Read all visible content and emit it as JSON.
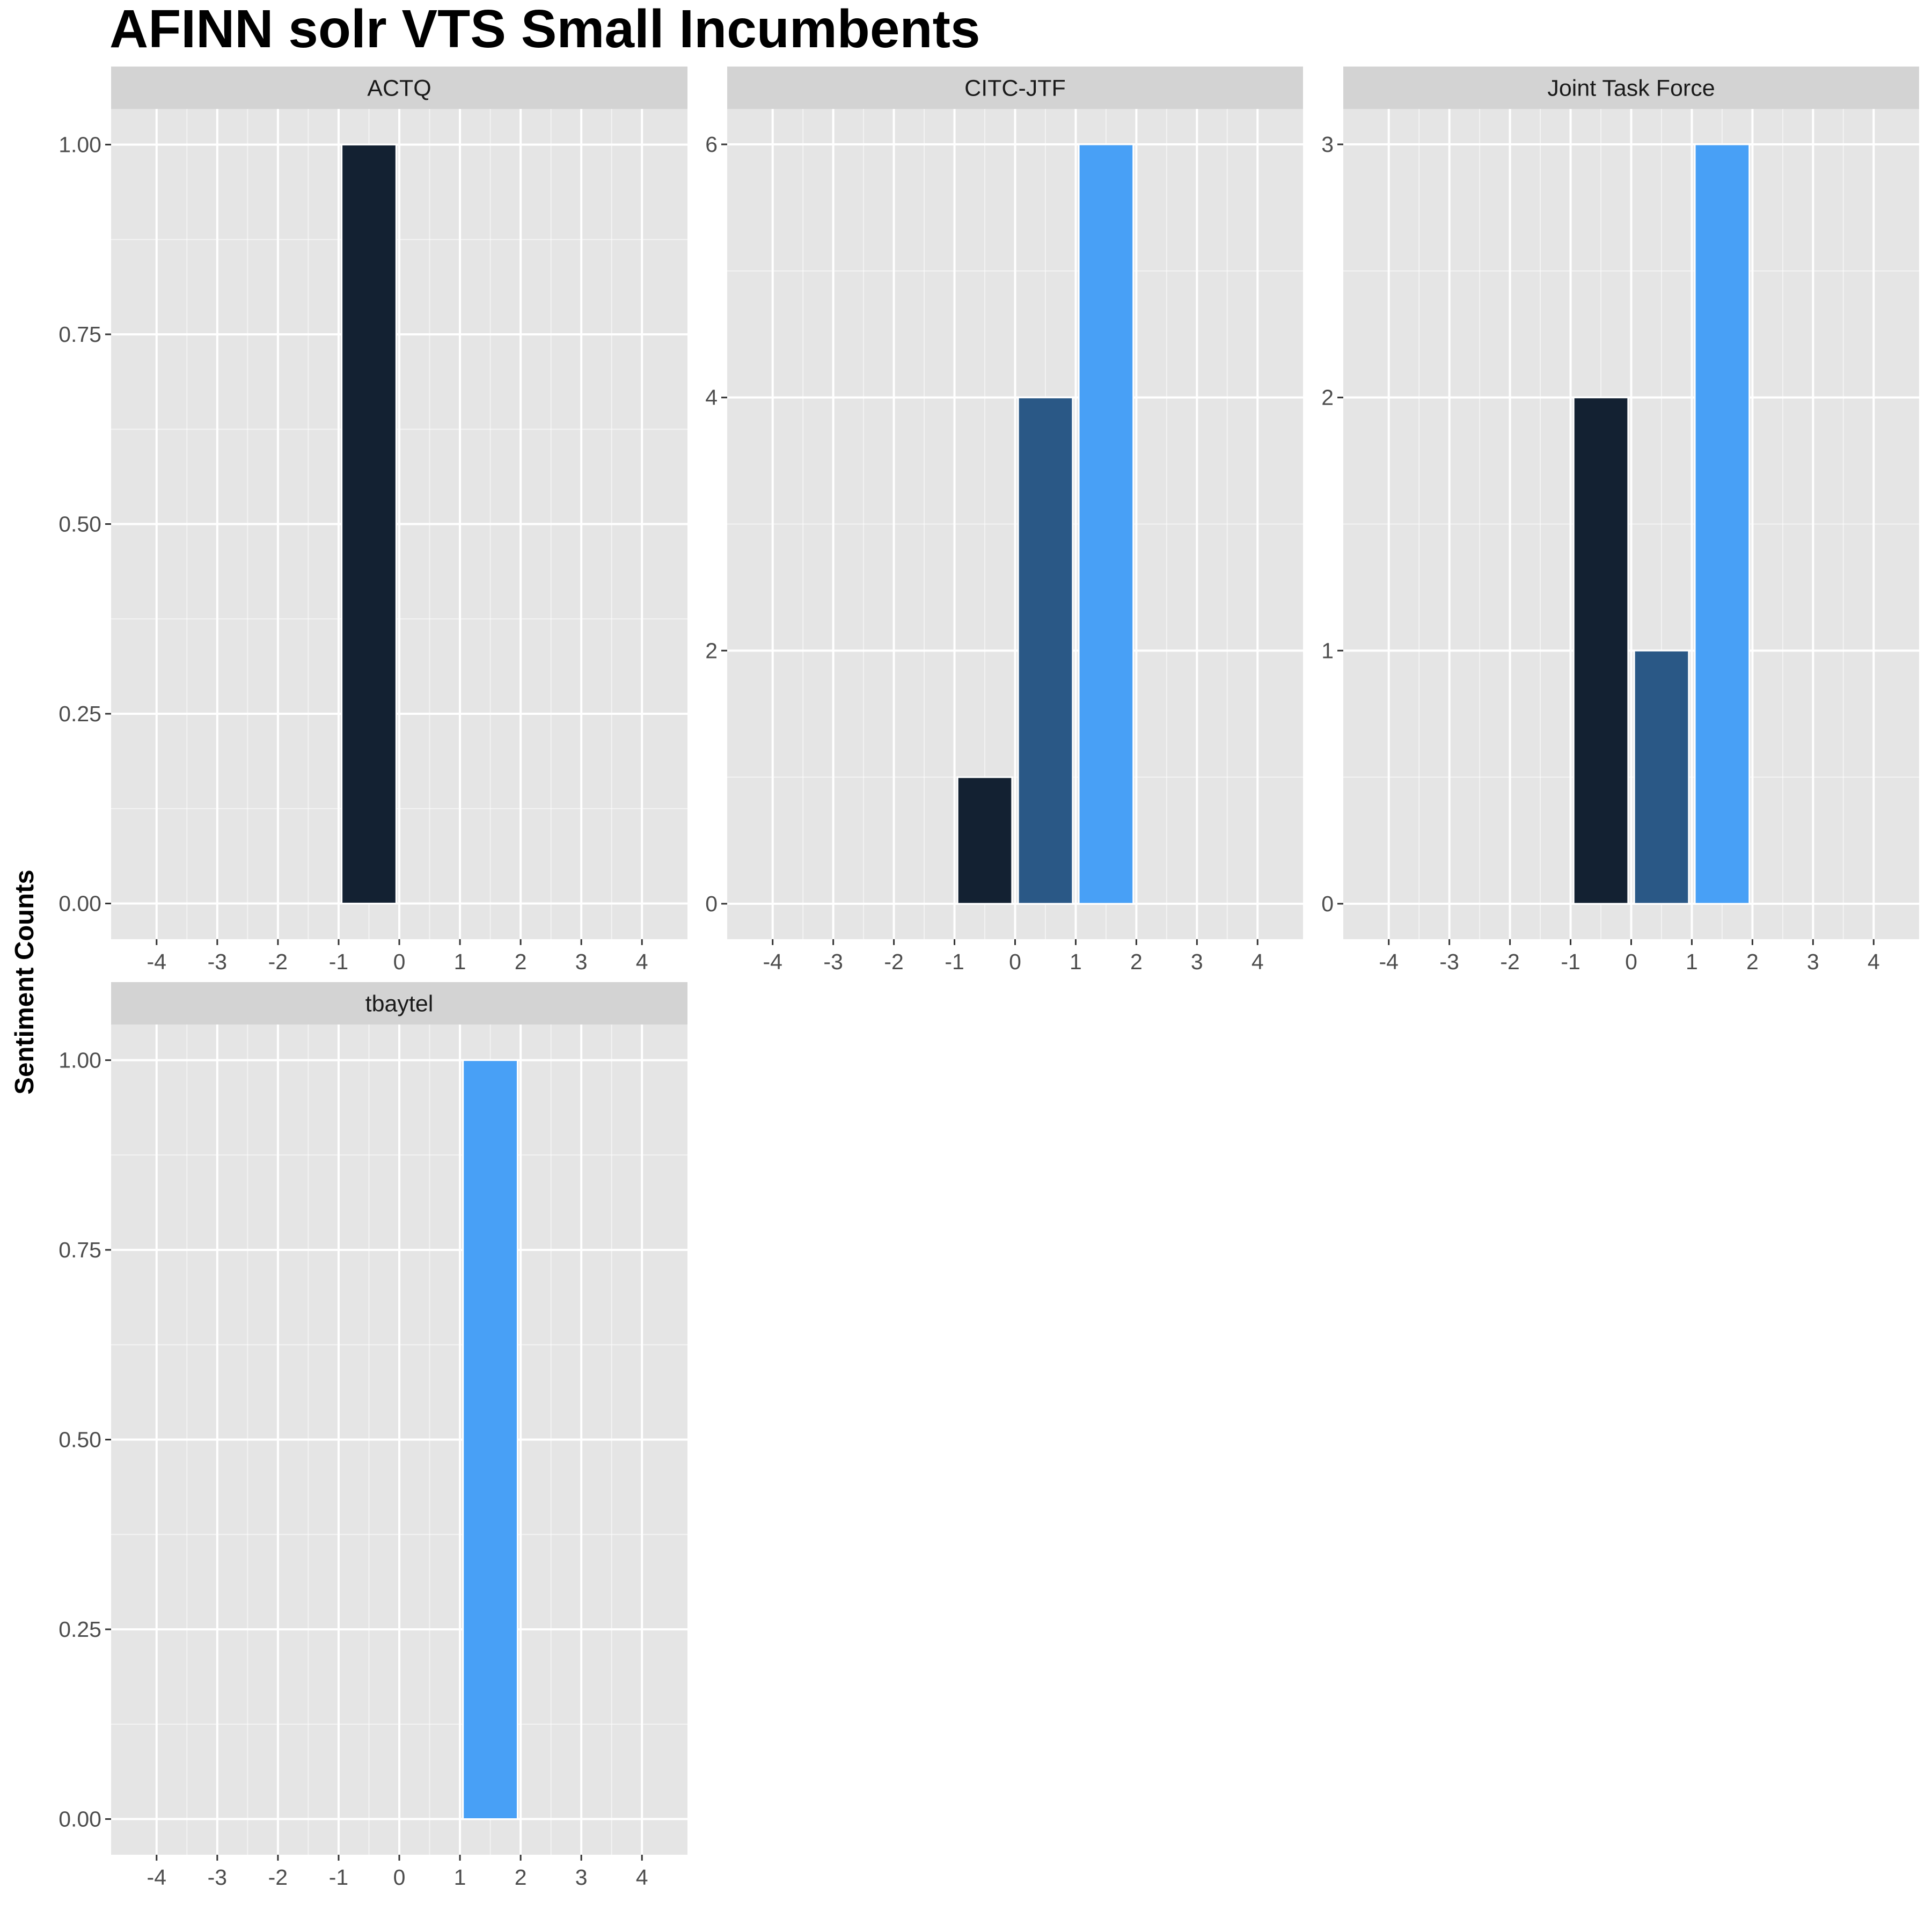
{
  "chart_data": {
    "type": "bar",
    "title": "AFINN solr VTS Small Incumbents",
    "ylabel": "Sentiment Counts",
    "xlabel": "",
    "x_ticks": [
      -4,
      -3,
      -2,
      -1,
      0,
      1,
      2,
      3,
      4
    ],
    "xlim": [
      -4.75,
      4.75
    ],
    "grid": true,
    "colors": {
      "panel_background": "#e5e5e5",
      "grid": "#ffffff",
      "strip_background": "#d3d3d3",
      "bar_low": "#132132",
      "bar_mid": "#2a5886",
      "bar_high": "#48a0f6"
    },
    "facets": [
      {
        "label": "ACTQ",
        "ylim": [
          -0.047,
          1.047
        ],
        "y_ticks": [
          0,
          0.25,
          0.5,
          0.75,
          1
        ],
        "y_tick_labels": [
          "0.00",
          "0.25",
          "0.50",
          "0.75",
          "1.00"
        ],
        "bars": [
          {
            "x": -0.5,
            "value": 1,
            "color": "#132132"
          }
        ]
      },
      {
        "label": "CITC-JTF",
        "ylim": [
          -0.28,
          6.28
        ],
        "y_ticks": [
          0,
          2,
          4,
          6
        ],
        "y_tick_labels": [
          "0",
          "2",
          "4",
          "6"
        ],
        "bars": [
          {
            "x": -0.5,
            "value": 1,
            "color": "#132132"
          },
          {
            "x": 0.5,
            "value": 4,
            "color": "#2a5886"
          },
          {
            "x": 1.5,
            "value": 6,
            "color": "#48a0f6"
          }
        ]
      },
      {
        "label": "Joint Task Force",
        "ylim": [
          -0.14,
          3.14
        ],
        "y_ticks": [
          0,
          1,
          2,
          3
        ],
        "y_tick_labels": [
          "0",
          "1",
          "2",
          "3"
        ],
        "bars": [
          {
            "x": -0.5,
            "value": 2,
            "color": "#132132"
          },
          {
            "x": 0.5,
            "value": 1,
            "color": "#2a5886"
          },
          {
            "x": 1.5,
            "value": 3,
            "color": "#48a0f6"
          }
        ]
      },
      {
        "label": "tbaytel",
        "ylim": [
          -0.047,
          1.047
        ],
        "y_ticks": [
          0,
          0.25,
          0.5,
          0.75,
          1
        ],
        "y_tick_labels": [
          "0.00",
          "0.25",
          "0.50",
          "0.75",
          "1.00"
        ],
        "bars": [
          {
            "x": 1.5,
            "value": 1,
            "color": "#48a0f6"
          }
        ]
      }
    ]
  }
}
